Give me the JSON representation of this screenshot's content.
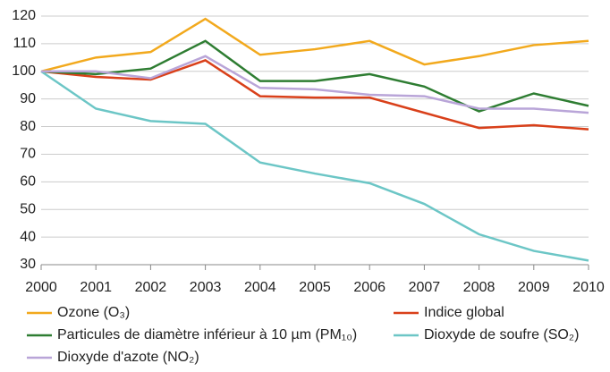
{
  "chart_data": {
    "type": "line",
    "x": [
      2000,
      2001,
      2002,
      2003,
      2004,
      2005,
      2006,
      2007,
      2008,
      2009,
      2010
    ],
    "xlim": [
      2000,
      2010
    ],
    "xticks": [
      2000,
      2001,
      2002,
      2003,
      2004,
      2005,
      2006,
      2007,
      2008,
      2009,
      2010
    ],
    "ylim": [
      30,
      120
    ],
    "yticks": [
      30,
      40,
      50,
      60,
      70,
      80,
      90,
      100,
      110,
      120
    ],
    "grid": true,
    "series": [
      {
        "name": "Ozone (O₃)",
        "color": "#f2a91d",
        "values": [
          100,
          105,
          107,
          119,
          106,
          108,
          111,
          102.5,
          105.5,
          109.5,
          111
        ]
      },
      {
        "name": "Indice global",
        "color": "#d9401a",
        "values": [
          100,
          98,
          97,
          104,
          91,
          90.5,
          90.5,
          85,
          79.5,
          80.5,
          79
        ]
      },
      {
        "name": "Particules de diamètre  inférieur à 10 µm (PM₁₀)",
        "color": "#2e7d32",
        "values": [
          100,
          99,
          101,
          111,
          96.5,
          96.5,
          99,
          94.5,
          85.5,
          92,
          87.5
        ]
      },
      {
        "name": "Dioxyde de soufre (SO₂)",
        "color": "#6cc6c6",
        "values": [
          100,
          86.5,
          82,
          81,
          67,
          63,
          59.5,
          52,
          41,
          35,
          31.5
        ]
      },
      {
        "name": "Dioxyde d'azote (NO₂)",
        "color": "#b9a5d8",
        "values": [
          100,
          100,
          97.5,
          105.5,
          94,
          93.5,
          91.5,
          91,
          86.5,
          86.5,
          85
        ]
      }
    ]
  }
}
